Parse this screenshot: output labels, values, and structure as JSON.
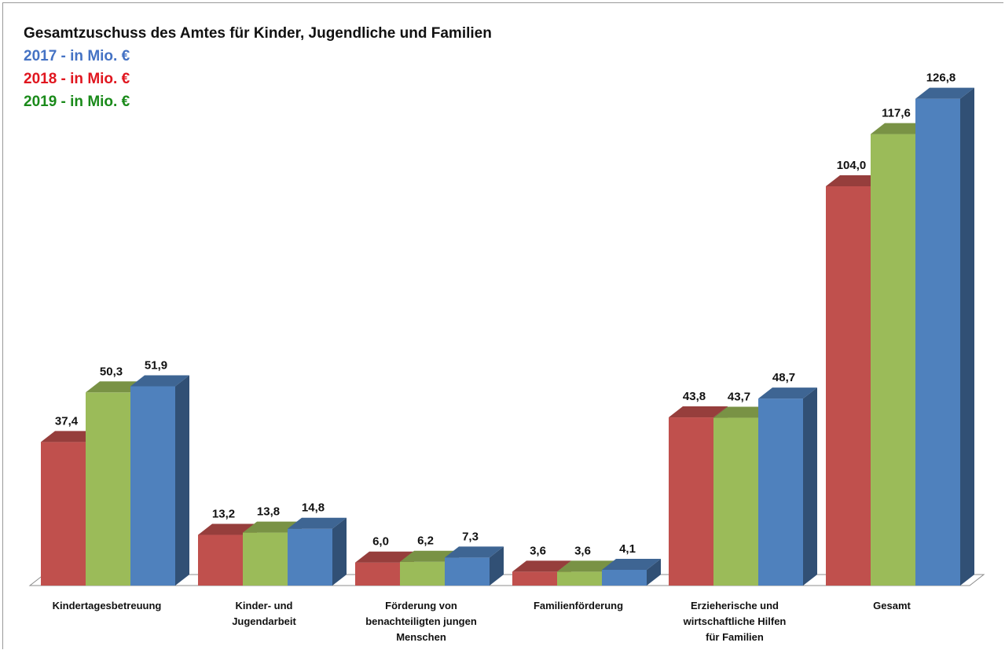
{
  "chart_data": {
    "type": "bar",
    "title": "Gesamtzuschuss des Amtes für Kinder, Jugendliche und Familien",
    "categories": [
      [
        "Kindertagesbetreuung"
      ],
      [
        "Kinder- und",
        "Jugendarbeit"
      ],
      [
        "Förderung von",
        "benachteiligten jungen",
        "Menschen"
      ],
      [
        "Familienförderung"
      ],
      [
        "Erzieherische und",
        "wirtschaftliche Hilfen",
        "für Familien"
      ],
      [
        "Gesamt"
      ]
    ],
    "series": [
      {
        "name": "2018 - in Mio. €",
        "color": "#c0504d",
        "values": [
          37.4,
          13.2,
          6.0,
          3.6,
          43.8,
          104.0
        ],
        "labels": [
          "37,4",
          "13,2",
          "6,0",
          "3,6",
          "43,8",
          "104,0"
        ]
      },
      {
        "name": "2019 - in Mio. €",
        "color": "#9bbb59",
        "values": [
          50.3,
          13.8,
          6.2,
          3.6,
          43.7,
          117.6
        ],
        "labels": [
          "50,3",
          "13,8",
          "6,2",
          "3,6",
          "43,7",
          "117,6"
        ]
      },
      {
        "name": "2017 - in Mio. €",
        "color": "#4f81bd",
        "values": [
          51.9,
          14.8,
          7.3,
          4.1,
          48.7,
          126.8
        ],
        "labels": [
          "51,9",
          "14,8",
          "7,3",
          "4,1",
          "48,7",
          "126,8"
        ]
      }
    ],
    "legend": [
      {
        "text": "2017 - in Mio. €",
        "color": "#4472c4"
      },
      {
        "text": "2018 - in Mio. €",
        "color": "#e0161f"
      },
      {
        "text": "2019 - in Mio. €",
        "color": "#1a8a1a"
      }
    ],
    "ylim": [
      0,
      130
    ],
    "grid": false,
    "style": "3d-clustered-column"
  }
}
